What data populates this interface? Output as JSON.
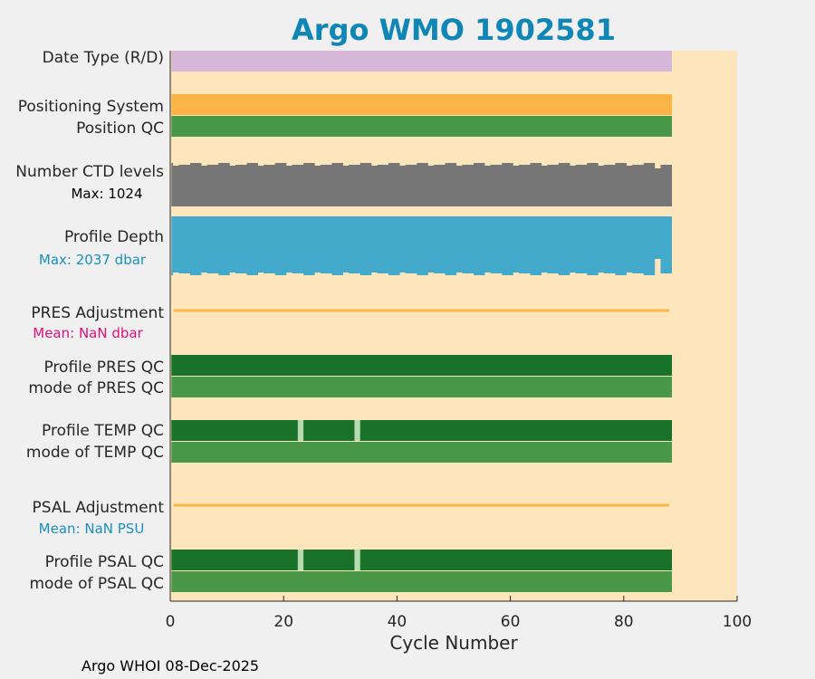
{
  "chart_data": {
    "type": "bar",
    "title": "Argo WMO 1902581",
    "xlabel": "Cycle Number",
    "xlim": [
      0,
      100
    ],
    "xticks": [
      "0",
      "20",
      "40",
      "60",
      "80",
      "100"
    ],
    "last_cycle": 88,
    "rows": [
      {
        "key": "date_type",
        "label": "Date Type (R/D)",
        "kind": "bar",
        "color": "#d8b8d8"
      },
      {
        "key": "pos_system",
        "label": "Positioning System",
        "kind": "bar",
        "color": "#fcb545"
      },
      {
        "key": "pos_qc",
        "label": "Position QC",
        "kind": "bar",
        "color": "#489848"
      },
      {
        "key": "n_ctd",
        "label": "Number CTD levels",
        "kind": "ragged-top",
        "color": "#767676",
        "note": "Max: 1024",
        "note_color": "#000000"
      },
      {
        "key": "depth",
        "label": "Profile Depth",
        "kind": "ragged-bottom",
        "color": "#44aacc",
        "note": "Max: 2037 dbar",
        "note_color": "#1a8fbf"
      },
      {
        "key": "pres_adj",
        "label": "PRES Adjustment",
        "kind": "line",
        "color": "#fcb545",
        "note": "Mean:  NaN dbar",
        "note_color": "#e0107a"
      },
      {
        "key": "pres_qc",
        "label": "Profile PRES QC",
        "kind": "bar",
        "color": "#18722a"
      },
      {
        "key": "pres_mode",
        "label": "mode of PRES QC",
        "kind": "bar",
        "color": "#489848"
      },
      {
        "key": "temp_qc",
        "label": "Profile TEMP QC",
        "kind": "qc",
        "color": "#18722a",
        "gaps": [
          23,
          33
        ],
        "gap_color": "#b7dab0"
      },
      {
        "key": "temp_mode",
        "label": "mode of TEMP QC",
        "kind": "bar",
        "color": "#489848"
      },
      {
        "key": "psal_adj",
        "label": "PSAL Adjustment",
        "kind": "line",
        "color": "#fcb545",
        "note": "Mean:  NaN PSU",
        "note_color": "#1a8fbf"
      },
      {
        "key": "psal_qc",
        "label": "Profile PSAL QC",
        "kind": "qc",
        "color": "#18722a",
        "gaps": [
          23,
          33
        ],
        "gap_color": "#b7dab0"
      },
      {
        "key": "psal_mode",
        "label": "mode of PSAL QC",
        "kind": "bar",
        "color": "#489848"
      }
    ]
  },
  "footer": "Argo WHOI 08-Dec-2025",
  "colors": {
    "plot_bg": "#fde6bc",
    "title": "#0f86b5",
    "page_bg": "#f0f0f0"
  }
}
